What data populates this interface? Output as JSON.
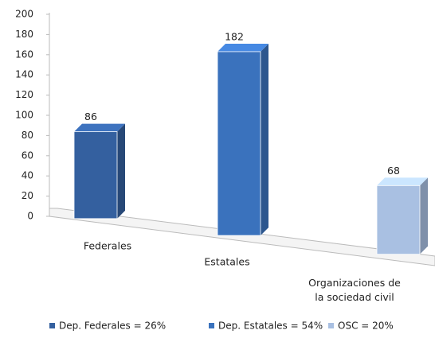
{
  "chart_data": {
    "type": "bar3d",
    "categories": [
      "Federales",
      "Estatales",
      "Organizaciones de\nla sociedad civil"
    ],
    "values": [
      86,
      182,
      68
    ],
    "colors": [
      "#34609f",
      "#3a72bd",
      "#a9c0e2"
    ],
    "legend": [
      "Dep. Federales = 26%",
      "Dep. Estatales = 54%",
      "OSC = 20%"
    ],
    "ylim": [
      0,
      200
    ],
    "yticks": [
      0,
      20,
      40,
      60,
      80,
      100,
      120,
      140,
      160,
      180,
      200
    ]
  }
}
